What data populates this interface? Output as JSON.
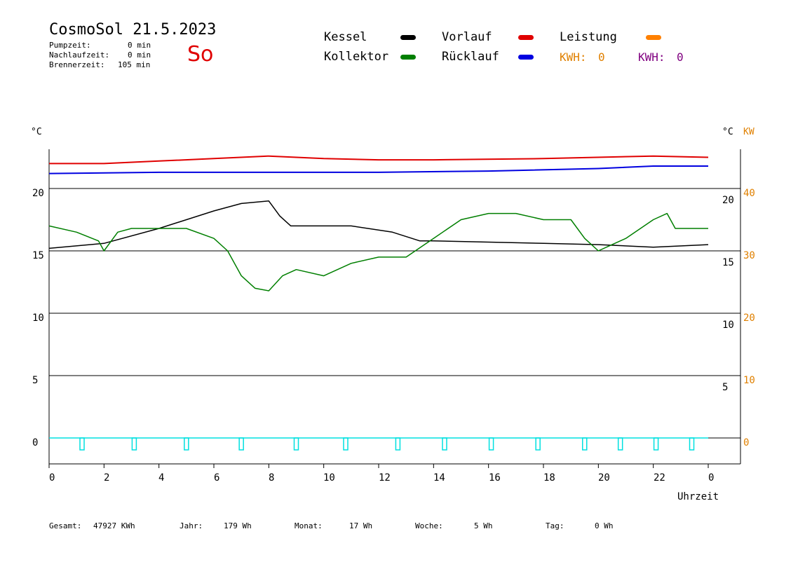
{
  "header": {
    "title": "CosmoSol 21.5.2023",
    "day": "So",
    "stats": [
      {
        "label": "Pumpzeit:",
        "value": "0 min"
      },
      {
        "label": "Nachlaufzeit:",
        "value": "0 min"
      },
      {
        "label": "Brennerzeit:",
        "value": "105 min"
      }
    ]
  },
  "legend": {
    "kessel": "Kessel",
    "kollektor": "Kollektor",
    "vorlauf": "Vorlauf",
    "ruecklauf": "Rücklauf",
    "leistung": "Leistung",
    "kwh1_label": "KWH:",
    "kwh1_value": "0",
    "kwh2_label": "KWH:",
    "kwh2_value": "0"
  },
  "colors": {
    "kessel": "#000000",
    "kollektor": "#007f00",
    "vorlauf": "#e00000",
    "ruecklauf": "#0000e0",
    "leistung": "#ff8000",
    "kwh2": "#800080",
    "cyan": "#00e0e0"
  },
  "axes": {
    "left_unit": "°C",
    "right_unit": "°C",
    "right_unit2": "KW",
    "x_label": "Uhrzeit"
  },
  "footer": {
    "gesamt_label": "Gesamt:",
    "gesamt_value": "47927 KWh",
    "jahr_label": "Jahr:",
    "jahr_value": "179 Wh",
    "monat_label": "Monat:",
    "monat_value": "17 Wh",
    "woche_label": "Woche:",
    "woche_value": "5 Wh",
    "tag_label": "Tag:",
    "tag_value": "0 Wh"
  },
  "chart_data": {
    "type": "line",
    "xlabel": "Uhrzeit",
    "x_ticks": [
      "0",
      "2",
      "4",
      "6",
      "8",
      "10",
      "12",
      "14",
      "16",
      "18",
      "20",
      "22",
      "0"
    ],
    "y_left_ticks": [
      "0",
      "5",
      "10",
      "15",
      "20"
    ],
    "y_right_ticks": [
      "5",
      "10",
      "15",
      "20"
    ],
    "y_right2_ticks": [
      "0",
      "10",
      "20",
      "30",
      "40"
    ],
    "xlim": [
      0,
      24
    ],
    "ylim": [
      -2,
      24
    ],
    "series": [
      {
        "name": "Kessel",
        "points": [
          [
            0,
            15.2
          ],
          [
            2,
            15.6
          ],
          [
            4,
            16.8
          ],
          [
            6,
            18.2
          ],
          [
            7,
            18.8
          ],
          [
            8,
            19.0
          ],
          [
            8.4,
            17.8
          ],
          [
            8.8,
            17.0
          ],
          [
            11,
            17.0
          ],
          [
            12.5,
            16.5
          ],
          [
            13.5,
            15.8
          ],
          [
            14,
            15.8
          ],
          [
            16,
            15.7
          ],
          [
            18,
            15.6
          ],
          [
            20,
            15.5
          ],
          [
            22,
            15.3
          ],
          [
            24,
            15.5
          ]
        ]
      },
      {
        "name": "Kollektor",
        "points": [
          [
            0,
            17.0
          ],
          [
            1,
            16.5
          ],
          [
            1.8,
            15.8
          ],
          [
            2,
            15.0
          ],
          [
            2.5,
            16.5
          ],
          [
            3,
            16.8
          ],
          [
            4,
            16.8
          ],
          [
            5,
            16.8
          ],
          [
            6,
            16.0
          ],
          [
            6.5,
            15.0
          ],
          [
            7,
            13.0
          ],
          [
            7.5,
            12.0
          ],
          [
            8,
            11.8
          ],
          [
            8.5,
            13.0
          ],
          [
            9,
            13.5
          ],
          [
            10,
            13.0
          ],
          [
            11,
            14.0
          ],
          [
            12,
            14.5
          ],
          [
            13,
            14.5
          ],
          [
            14,
            16.0
          ],
          [
            15,
            17.5
          ],
          [
            16,
            18.0
          ],
          [
            17,
            18.0
          ],
          [
            18,
            17.5
          ],
          [
            19,
            17.5
          ],
          [
            19.5,
            16.0
          ],
          [
            20,
            15.0
          ],
          [
            20.5,
            15.5
          ],
          [
            21,
            16.0
          ],
          [
            22,
            17.5
          ],
          [
            22.5,
            18.0
          ],
          [
            22.8,
            16.8
          ],
          [
            24,
            16.8
          ]
        ]
      },
      {
        "name": "Vorlauf",
        "points": [
          [
            0,
            22.0
          ],
          [
            2,
            22.0
          ],
          [
            4,
            22.2
          ],
          [
            6,
            22.4
          ],
          [
            8,
            22.6
          ],
          [
            10,
            22.4
          ],
          [
            12,
            22.3
          ],
          [
            14,
            22.3
          ],
          [
            18,
            22.4
          ],
          [
            22,
            22.6
          ],
          [
            24,
            22.5
          ]
        ]
      },
      {
        "name": "Rücklauf",
        "points": [
          [
            0,
            21.2
          ],
          [
            4,
            21.3
          ],
          [
            8,
            21.3
          ],
          [
            12,
            21.3
          ],
          [
            16,
            21.4
          ],
          [
            20,
            21.6
          ],
          [
            22,
            21.8
          ],
          [
            24,
            21.8
          ]
        ]
      },
      {
        "name": "Leistung",
        "points": [
          [
            0,
            0
          ],
          [
            24,
            0
          ]
        ]
      }
    ],
    "pulses": [
      1.2,
      3.1,
      5.0,
      7.0,
      9.0,
      10.8,
      12.7,
      14.4,
      16.1,
      17.8,
      19.5,
      20.8,
      22.1,
      23.4
    ]
  }
}
